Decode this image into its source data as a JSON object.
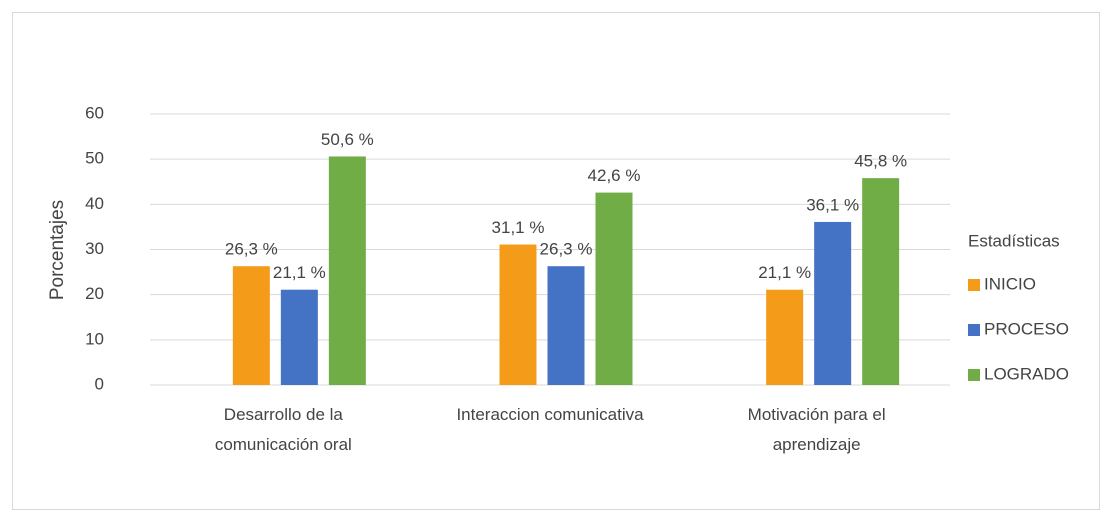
{
  "chart_data": {
    "type": "bar",
    "categories": [
      "Desarrollo de la comunicación oral",
      "Interaccion comunicativa",
      "Motivación para el aprendizaje"
    ],
    "series": [
      {
        "name": "INICIO",
        "color": "#f49c1a",
        "values": [
          26.3,
          31.1,
          21.1
        ],
        "value_labels": [
          "26,3 %",
          "31,1 %",
          "21,1 %"
        ]
      },
      {
        "name": "PROCESO",
        "color": "#4472c4",
        "values": [
          21.1,
          26.3,
          36.1
        ],
        "value_labels": [
          "21,1 %",
          "26,3 %",
          "36,1 %"
        ]
      },
      {
        "name": "LOGRADO",
        "color": "#70ad47",
        "values": [
          50.6,
          42.6,
          45.8
        ],
        "value_labels": [
          "50,6 %",
          "42,6 %",
          "45,8 %"
        ]
      }
    ],
    "ylabel": "Porcentajes",
    "legend_title": "Estadísticas",
    "legend_position": "right",
    "ylim": [
      0,
      60
    ],
    "yticks": [
      0,
      10,
      20,
      30,
      40,
      50,
      60
    ],
    "grid": true
  }
}
